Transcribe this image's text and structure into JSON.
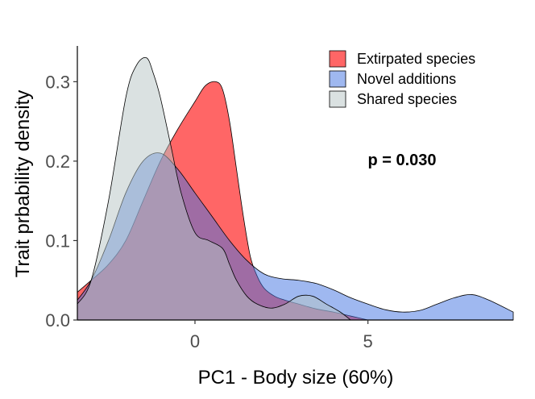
{
  "chart_data": {
    "type": "area",
    "xlabel": "PC1 - Body size (60%)",
    "ylabel": "Trait prbability density",
    "xlim": [
      -3.4,
      9.2
    ],
    "ylim": [
      0,
      0.345
    ],
    "x_ticks": [
      0,
      5
    ],
    "x_tick_labels": [
      "0",
      "5"
    ],
    "y_ticks": [
      0.0,
      0.1,
      0.2,
      0.3
    ],
    "y_tick_labels": [
      "0.0",
      "0.1",
      "0.2",
      "0.3"
    ],
    "grid": false,
    "legend_position": "top-right",
    "annotation": "p = 0.030",
    "series": [
      {
        "name": "Extirpated species",
        "color": "#ff0000",
        "opacity": 0.6,
        "x": [
          -3.4,
          -3.0,
          -2.5,
          -2.0,
          -1.5,
          -1.0,
          -0.5,
          0.0,
          0.3,
          0.6,
          0.8,
          1.0,
          1.2,
          1.4,
          1.6,
          1.8,
          2.0,
          2.3,
          2.6,
          3.0,
          3.5,
          4.0,
          4.5,
          5.0
        ],
        "y": [
          0.035,
          0.05,
          0.07,
          0.1,
          0.15,
          0.2,
          0.24,
          0.275,
          0.295,
          0.3,
          0.29,
          0.25,
          0.19,
          0.13,
          0.08,
          0.055,
          0.04,
          0.03,
          0.025,
          0.02,
          0.014,
          0.01,
          0.005,
          0.0
        ]
      },
      {
        "name": "Novel additions",
        "color": "#3f72e1",
        "opacity": 0.5,
        "x": [
          -3.4,
          -3.0,
          -2.5,
          -2.0,
          -1.5,
          -1.0,
          -0.5,
          0.0,
          0.5,
          1.0,
          1.5,
          2.0,
          2.5,
          3.0,
          3.5,
          4.0,
          4.5,
          5.0,
          5.5,
          6.0,
          6.5,
          7.0,
          7.5,
          8.0,
          8.5,
          9.2
        ],
        "y": [
          0.025,
          0.05,
          0.1,
          0.16,
          0.2,
          0.21,
          0.19,
          0.16,
          0.13,
          0.1,
          0.075,
          0.058,
          0.052,
          0.05,
          0.046,
          0.038,
          0.028,
          0.02,
          0.013,
          0.01,
          0.012,
          0.02,
          0.028,
          0.032,
          0.025,
          0.01
        ]
      },
      {
        "name": "Shared species",
        "color": "#b6c3c3",
        "opacity": 0.5,
        "x": [
          -3.4,
          -3.0,
          -2.5,
          -2.0,
          -1.7,
          -1.4,
          -1.2,
          -1.0,
          -0.7,
          -0.4,
          0.0,
          0.4,
          0.8,
          1.0,
          1.2,
          1.5,
          1.8,
          2.2,
          2.6,
          3.0,
          3.4,
          3.8,
          4.2,
          4.5
        ],
        "y": [
          0.02,
          0.05,
          0.15,
          0.28,
          0.32,
          0.33,
          0.31,
          0.28,
          0.22,
          0.16,
          0.11,
          0.1,
          0.09,
          0.07,
          0.05,
          0.03,
          0.02,
          0.015,
          0.02,
          0.03,
          0.03,
          0.02,
          0.01,
          0.0
        ]
      }
    ]
  }
}
